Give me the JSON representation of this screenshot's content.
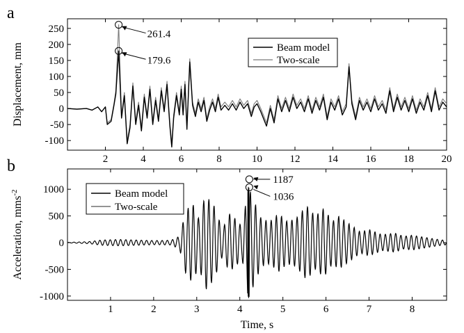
{
  "chart_data": [
    {
      "type": "line",
      "panel_label": "a",
      "xlabel": "",
      "ylabel": "Displacement, mm",
      "xlim": [
        0,
        20
      ],
      "ylim": [
        -130,
        280
      ],
      "xticks": [
        2,
        4,
        6,
        8,
        10,
        12,
        14,
        16,
        18,
        20
      ],
      "yticks": [
        -100,
        -50,
        0,
        50,
        100,
        150,
        200,
        250
      ],
      "legend_position": "top-right",
      "series": [
        {
          "name": "Beam model",
          "color": "#000000",
          "points": [
            [
              0,
              0
            ],
            [
              0.5,
              -2
            ],
            [
              1.0,
              0
            ],
            [
              1.3,
              -5
            ],
            [
              1.6,
              5
            ],
            [
              1.8,
              -10
            ],
            [
              2.0,
              5
            ],
            [
              2.1,
              -50
            ],
            [
              2.3,
              -40
            ],
            [
              2.45,
              10
            ],
            [
              2.55,
              45
            ],
            [
              2.7,
              179.6
            ],
            [
              2.85,
              -30
            ],
            [
              3.0,
              40
            ],
            [
              3.15,
              -110
            ],
            [
              3.3,
              -60
            ],
            [
              3.45,
              70
            ],
            [
              3.6,
              -50
            ],
            [
              3.75,
              10
            ],
            [
              3.9,
              -70
            ],
            [
              4.05,
              35
            ],
            [
              4.2,
              -30
            ],
            [
              4.35,
              60
            ],
            [
              4.5,
              -50
            ],
            [
              4.65,
              25
            ],
            [
              4.8,
              -40
            ],
            [
              4.95,
              55
            ],
            [
              5.1,
              -10
            ],
            [
              5.25,
              75
            ],
            [
              5.4,
              -55
            ],
            [
              5.5,
              -120
            ],
            [
              5.6,
              -30
            ],
            [
              5.75,
              40
            ],
            [
              5.9,
              -20
            ],
            [
              6.0,
              60
            ],
            [
              6.1,
              -20
            ],
            [
              6.2,
              75
            ],
            [
              6.3,
              -65
            ],
            [
              6.45,
              145
            ],
            [
              6.6,
              10
            ],
            [
              6.75,
              -25
            ],
            [
              6.9,
              20
            ],
            [
              7.05,
              -10
            ],
            [
              7.2,
              25
            ],
            [
              7.35,
              -40
            ],
            [
              7.5,
              -5
            ],
            [
              7.65,
              20
            ],
            [
              7.8,
              -10
            ],
            [
              7.95,
              35
            ],
            [
              8.1,
              -5
            ],
            [
              8.3,
              10
            ],
            [
              8.5,
              -5
            ],
            [
              8.7,
              15
            ],
            [
              8.9,
              -5
            ],
            [
              9.1,
              20
            ],
            [
              9.3,
              0
            ],
            [
              9.5,
              15
            ],
            [
              9.7,
              -25
            ],
            [
              9.85,
              5
            ],
            [
              10.0,
              15
            ],
            [
              10.2,
              -10
            ],
            [
              10.5,
              -55
            ],
            [
              10.7,
              0
            ],
            [
              10.9,
              -45
            ],
            [
              11.1,
              30
            ],
            [
              11.3,
              -10
            ],
            [
              11.5,
              25
            ],
            [
              11.7,
              -10
            ],
            [
              11.9,
              35
            ],
            [
              12.1,
              0
            ],
            [
              12.3,
              20
            ],
            [
              12.5,
              -10
            ],
            [
              12.7,
              30
            ],
            [
              12.9,
              -15
            ],
            [
              13.1,
              25
            ],
            [
              13.3,
              -5
            ],
            [
              13.5,
              35
            ],
            [
              13.7,
              -35
            ],
            [
              13.9,
              20
            ],
            [
              14.1,
              -5
            ],
            [
              14.3,
              30
            ],
            [
              14.5,
              -20
            ],
            [
              14.7,
              5
            ],
            [
              14.85,
              130
            ],
            [
              15.0,
              15
            ],
            [
              15.2,
              -35
            ],
            [
              15.4,
              25
            ],
            [
              15.6,
              -5
            ],
            [
              15.8,
              20
            ],
            [
              16.0,
              -10
            ],
            [
              16.2,
              30
            ],
            [
              16.4,
              -5
            ],
            [
              16.6,
              15
            ],
            [
              16.8,
              -15
            ],
            [
              17.0,
              55
            ],
            [
              17.2,
              -10
            ],
            [
              17.4,
              35
            ],
            [
              17.6,
              -5
            ],
            [
              17.8,
              25
            ],
            [
              18.0,
              -10
            ],
            [
              18.2,
              30
            ],
            [
              18.4,
              -15
            ],
            [
              18.6,
              20
            ],
            [
              18.8,
              -5
            ],
            [
              19.0,
              40
            ],
            [
              19.2,
              -10
            ],
            [
              19.4,
              55
            ],
            [
              19.6,
              -5
            ],
            [
              19.8,
              20
            ],
            [
              20.0,
              5
            ]
          ]
        },
        {
          "name": "Two-scale",
          "color": "#7a7a7a",
          "points": [
            [
              0,
              0
            ],
            [
              0.5,
              -2
            ],
            [
              1.0,
              0
            ],
            [
              1.3,
              -5
            ],
            [
              1.6,
              5
            ],
            [
              1.8,
              -10
            ],
            [
              2.0,
              5
            ],
            [
              2.1,
              -45
            ],
            [
              2.3,
              -35
            ],
            [
              2.45,
              15
            ],
            [
              2.55,
              55
            ],
            [
              2.7,
              261.4
            ],
            [
              2.85,
              -20
            ],
            [
              3.0,
              50
            ],
            [
              3.15,
              -100
            ],
            [
              3.3,
              -50
            ],
            [
              3.45,
              80
            ],
            [
              3.6,
              -40
            ],
            [
              3.75,
              20
            ],
            [
              3.9,
              -60
            ],
            [
              4.05,
              45
            ],
            [
              4.2,
              -20
            ],
            [
              4.35,
              70
            ],
            [
              4.5,
              -40
            ],
            [
              4.65,
              35
            ],
            [
              4.8,
              -30
            ],
            [
              4.95,
              65
            ],
            [
              5.1,
              0
            ],
            [
              5.25,
              85
            ],
            [
              5.4,
              -45
            ],
            [
              5.5,
              -110
            ],
            [
              5.6,
              -20
            ],
            [
              5.75,
              50
            ],
            [
              5.9,
              -10
            ],
            [
              6.0,
              70
            ],
            [
              6.1,
              -10
            ],
            [
              6.2,
              85
            ],
            [
              6.3,
              -55
            ],
            [
              6.45,
              155
            ],
            [
              6.6,
              20
            ],
            [
              6.75,
              -15
            ],
            [
              6.9,
              30
            ],
            [
              7.05,
              0
            ],
            [
              7.2,
              35
            ],
            [
              7.35,
              -30
            ],
            [
              7.5,
              5
            ],
            [
              7.65,
              30
            ],
            [
              7.8,
              0
            ],
            [
              7.95,
              45
            ],
            [
              8.1,
              5
            ],
            [
              8.3,
              20
            ],
            [
              8.5,
              5
            ],
            [
              8.7,
              25
            ],
            [
              8.9,
              5
            ],
            [
              9.1,
              30
            ],
            [
              9.3,
              10
            ],
            [
              9.5,
              25
            ],
            [
              9.7,
              -15
            ],
            [
              9.85,
              15
            ],
            [
              10.0,
              25
            ],
            [
              10.2,
              0
            ],
            [
              10.5,
              -45
            ],
            [
              10.7,
              10
            ],
            [
              10.9,
              -35
            ],
            [
              11.1,
              40
            ],
            [
              11.3,
              0
            ],
            [
              11.5,
              35
            ],
            [
              11.7,
              0
            ],
            [
              11.9,
              45
            ],
            [
              12.1,
              10
            ],
            [
              12.3,
              30
            ],
            [
              12.5,
              0
            ],
            [
              12.7,
              40
            ],
            [
              12.9,
              -5
            ],
            [
              13.1,
              35
            ],
            [
              13.3,
              5
            ],
            [
              13.5,
              45
            ],
            [
              13.7,
              -25
            ],
            [
              13.9,
              30
            ],
            [
              14.1,
              5
            ],
            [
              14.3,
              40
            ],
            [
              14.5,
              -10
            ],
            [
              14.7,
              15
            ],
            [
              14.85,
              140
            ],
            [
              15.0,
              25
            ],
            [
              15.2,
              -25
            ],
            [
              15.4,
              35
            ],
            [
              15.6,
              5
            ],
            [
              15.8,
              30
            ],
            [
              16.0,
              0
            ],
            [
              16.2,
              40
            ],
            [
              16.4,
              5
            ],
            [
              16.6,
              25
            ],
            [
              16.8,
              -5
            ],
            [
              17.0,
              65
            ],
            [
              17.2,
              0
            ],
            [
              17.4,
              45
            ],
            [
              17.6,
              5
            ],
            [
              17.8,
              35
            ],
            [
              18.0,
              0
            ],
            [
              18.2,
              40
            ],
            [
              18.4,
              -5
            ],
            [
              18.6,
              30
            ],
            [
              18.8,
              5
            ],
            [
              19.0,
              50
            ],
            [
              19.2,
              0
            ],
            [
              19.4,
              65
            ],
            [
              19.6,
              5
            ],
            [
              19.8,
              30
            ],
            [
              20.0,
              15
            ]
          ]
        }
      ],
      "annotations": [
        {
          "text": "261.4",
          "x": 2.7,
          "y": 261.4
        },
        {
          "text": "179.6",
          "x": 2.7,
          "y": 179.6
        }
      ]
    },
    {
      "type": "line",
      "panel_label": "b",
      "xlabel": "Time, s",
      "ylabel_main": "Acceleration, mms",
      "ylabel_sup": "-2",
      "xlim": [
        0,
        8.8
      ],
      "ylim": [
        -1080,
        1380
      ],
      "xticks": [
        1,
        2,
        3,
        4,
        5,
        6,
        7,
        8
      ],
      "yticks": [
        -1000,
        -500,
        0,
        500,
        1000
      ],
      "legend_position": "top-left",
      "series": [
        {
          "name": "Beam model",
          "color": "#000000"
        },
        {
          "name": "Two-scale",
          "color": "#555555"
        }
      ],
      "envelope_points": [
        [
          0,
          5
        ],
        [
          0.5,
          20
        ],
        [
          0.8,
          50
        ],
        [
          1.2,
          60
        ],
        [
          1.6,
          50
        ],
        [
          2.0,
          40
        ],
        [
          2.4,
          45
        ],
        [
          2.6,
          120
        ],
        [
          2.75,
          600
        ],
        [
          2.9,
          750
        ],
        [
          3.05,
          450
        ],
        [
          3.2,
          900
        ],
        [
          3.4,
          700
        ],
        [
          3.6,
          250
        ],
        [
          3.75,
          550
        ],
        [
          3.9,
          450
        ],
        [
          4.05,
          300
        ],
        [
          4.2,
          1050
        ],
        [
          4.35,
          750
        ],
        [
          4.5,
          450
        ],
        [
          4.7,
          400
        ],
        [
          4.9,
          550
        ],
        [
          5.1,
          400
        ],
        [
          5.3,
          450
        ],
        [
          5.55,
          700
        ],
        [
          5.75,
          500
        ],
        [
          5.95,
          650
        ],
        [
          6.15,
          400
        ],
        [
          6.3,
          500
        ],
        [
          6.55,
          350
        ],
        [
          6.8,
          200
        ],
        [
          7.0,
          250
        ],
        [
          7.3,
          150
        ],
        [
          7.6,
          180
        ],
        [
          7.8,
          120
        ],
        [
          8.0,
          140
        ],
        [
          8.3,
          100
        ],
        [
          8.6,
          60
        ],
        [
          8.8,
          40
        ]
      ],
      "peak_time": 4.2,
      "annotations": [
        {
          "text": "1187",
          "x": 4.22,
          "y": 1187
        },
        {
          "text": "1036",
          "x": 4.22,
          "y": 1036
        }
      ]
    }
  ]
}
